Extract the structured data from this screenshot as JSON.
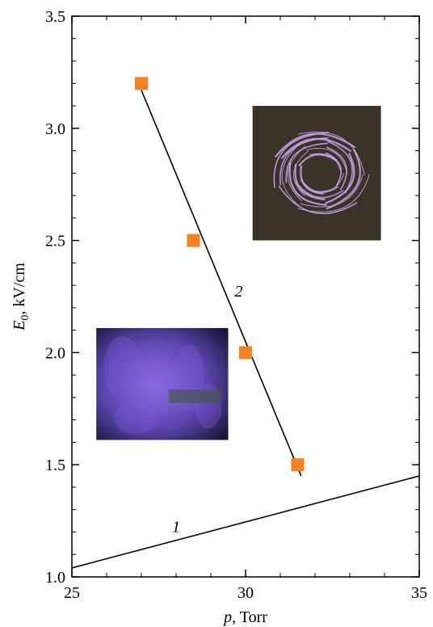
{
  "chart_data": {
    "type": "scatter",
    "xlabel_var": "p",
    "xlabel_unit": ", Torr",
    "ylabel_var": "E",
    "ylabel_sub": "0",
    "ylabel_unit": ", kV/cm",
    "xlim": [
      25,
      35
    ],
    "ylim": [
      1.0,
      3.5
    ],
    "x_ticks": [
      25,
      30,
      35
    ],
    "x_tick_labels": [
      "25",
      "30",
      "35"
    ],
    "y_ticks": [
      1.0,
      1.5,
      2.0,
      2.5,
      3.0,
      3.5
    ],
    "y_tick_labels": [
      "1.0",
      "1.5",
      "2.0",
      "2.5",
      "3.0",
      "3.5"
    ],
    "grid": false,
    "marker_color": "#f5811f",
    "series": [
      {
        "label": "2",
        "kind": "markers+fit",
        "points": [
          {
            "x": 27.0,
            "y": 3.2
          },
          {
            "x": 28.5,
            "y": 2.5
          },
          {
            "x": 30.0,
            "y": 2.0
          },
          {
            "x": 31.5,
            "y": 1.5
          }
        ],
        "fit_line": [
          {
            "x": 27.0,
            "y": 3.17
          },
          {
            "x": 31.6,
            "y": 1.45
          }
        ]
      },
      {
        "label": "1",
        "kind": "line",
        "points": [
          {
            "x": 25.0,
            "y": 1.04
          },
          {
            "x": 35.0,
            "y": 1.45
          }
        ]
      }
    ],
    "curve_labels": [
      {
        "text": "2",
        "x": 29.8,
        "y": 2.25
      },
      {
        "text": "1",
        "x": 28.0,
        "y": 1.2
      }
    ],
    "inset_images": [
      {
        "name": "inset-photo-filamentary-discharge",
        "x0": 30.2,
        "x1": 33.9,
        "y0": 2.5,
        "y1": 3.1,
        "tone": "#3a3327",
        "accent": "#cfa4f0"
      },
      {
        "name": "inset-photo-diffuse-discharge",
        "x0": 25.7,
        "x1": 29.5,
        "y0": 1.61,
        "y1": 2.11,
        "tone": "#2c2450",
        "accent": "#7a5ad8"
      }
    ]
  }
}
